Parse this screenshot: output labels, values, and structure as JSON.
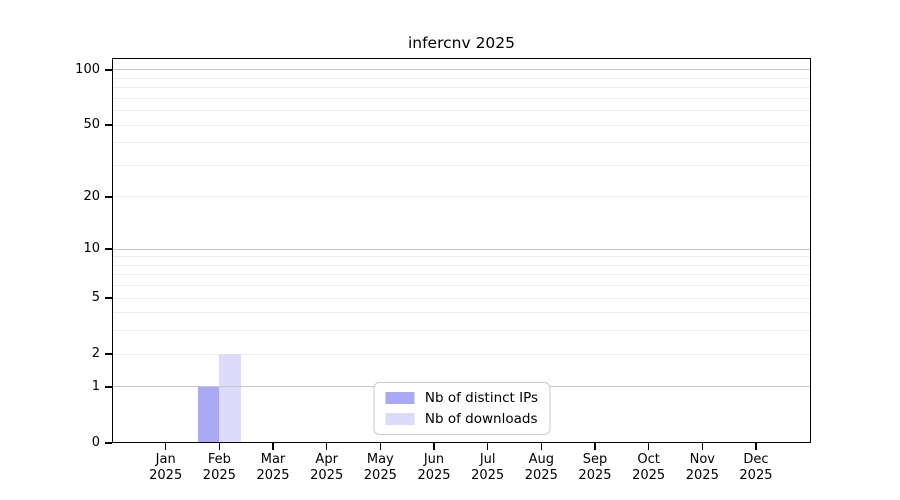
{
  "chart_data": {
    "type": "bar",
    "title": "infercnv 2025",
    "year": "2025",
    "months": [
      "Jan",
      "Feb",
      "Mar",
      "Apr",
      "May",
      "Jun",
      "Jul",
      "Aug",
      "Sep",
      "Oct",
      "Nov",
      "Dec"
    ],
    "series": [
      {
        "name": "Nb of distinct IPs",
        "color": "#a9a9f6",
        "values": [
          0,
          1,
          0,
          0,
          0,
          0,
          0,
          0,
          0,
          0,
          0,
          0
        ]
      },
      {
        "name": "Nb of downloads",
        "color": "#dcdcfa",
        "values": [
          0,
          2,
          0,
          0,
          0,
          0,
          0,
          0,
          0,
          0,
          0,
          0
        ]
      }
    ],
    "y_ticks": [
      0,
      1,
      2,
      5,
      10,
      20,
      50,
      100
    ],
    "y_major_gridlines": [
      1,
      10,
      100
    ],
    "y_minor_gridlines": [
      2,
      3,
      4,
      5,
      6,
      7,
      8,
      9,
      20,
      30,
      40,
      50,
      60,
      70,
      80,
      90
    ],
    "y_scale": "log10(value+1)",
    "ylim": [
      0,
      116
    ],
    "grid": "horizontal",
    "legend_position": "bottom-center",
    "colors": {
      "axis": "#000000",
      "major_grid": "#c7c7c7",
      "minor_grid": "#ededed",
      "legend_border": "#cccccc",
      "background": "#ffffff"
    }
  }
}
